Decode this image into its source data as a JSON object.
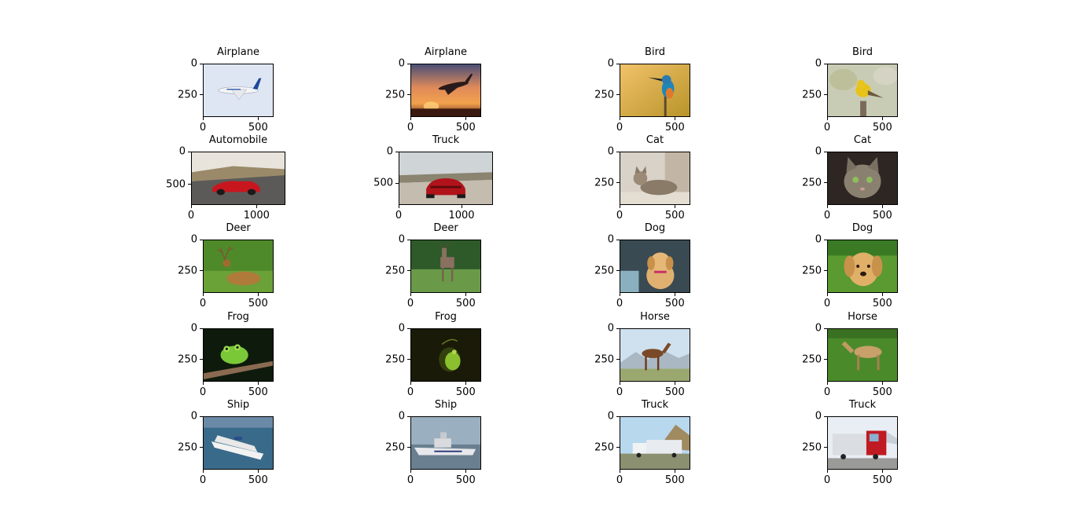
{
  "chart_data": {
    "type": "image-grid",
    "panels": [
      {
        "title": "Airplane",
        "scene": "airplane-sky",
        "xmax": 640,
        "ymax": 427,
        "xticks": [
          {
            "v": 0,
            "label": "0"
          },
          {
            "v": 500,
            "label": "500"
          }
        ],
        "yticks": [
          {
            "v": 0,
            "label": "0"
          },
          {
            "v": 250,
            "label": "250"
          }
        ]
      },
      {
        "title": "Airplane",
        "scene": "airplane-sunset",
        "xmax": 640,
        "ymax": 427,
        "xticks": [
          {
            "v": 0,
            "label": "0"
          },
          {
            "v": 500,
            "label": "500"
          }
        ],
        "yticks": [
          {
            "v": 0,
            "label": "0"
          },
          {
            "v": 250,
            "label": "250"
          }
        ]
      },
      {
        "title": "Bird",
        "scene": "kingfisher",
        "xmax": 640,
        "ymax": 427,
        "xticks": [
          {
            "v": 0,
            "label": "0"
          },
          {
            "v": 500,
            "label": "500"
          }
        ],
        "yticks": [
          {
            "v": 0,
            "label": "0"
          },
          {
            "v": 250,
            "label": "250"
          }
        ]
      },
      {
        "title": "Bird",
        "scene": "yellow-bird",
        "xmax": 640,
        "ymax": 427,
        "xticks": [
          {
            "v": 0,
            "label": "0"
          },
          {
            "v": 500,
            "label": "500"
          }
        ],
        "yticks": [
          {
            "v": 0,
            "label": "0"
          },
          {
            "v": 250,
            "label": "250"
          }
        ]
      },
      {
        "title": "Automobile",
        "scene": "red-car-road",
        "xmax": 1440,
        "ymax": 810,
        "xticks": [
          {
            "v": 0,
            "label": "0"
          },
          {
            "v": 1000,
            "label": "1000"
          }
        ],
        "yticks": [
          {
            "v": 0,
            "label": "0"
          },
          {
            "v": 500,
            "label": "500"
          }
        ]
      },
      {
        "title": "Truck",
        "scene": "red-car-rear",
        "xmax": 1500,
        "ymax": 844,
        "xticks": [
          {
            "v": 0,
            "label": "0"
          },
          {
            "v": 1000,
            "label": "1000"
          }
        ],
        "yticks": [
          {
            "v": 0,
            "label": "0"
          },
          {
            "v": 500,
            "label": "500"
          }
        ]
      },
      {
        "title": "Cat",
        "scene": "cat-lying",
        "xmax": 640,
        "ymax": 427,
        "xticks": [
          {
            "v": 0,
            "label": "0"
          },
          {
            "v": 500,
            "label": "500"
          }
        ],
        "yticks": [
          {
            "v": 0,
            "label": "0"
          },
          {
            "v": 250,
            "label": "250"
          }
        ]
      },
      {
        "title": "Cat",
        "scene": "cat-face",
        "xmax": 640,
        "ymax": 427,
        "xticks": [
          {
            "v": 0,
            "label": "0"
          },
          {
            "v": 500,
            "label": "500"
          }
        ],
        "yticks": [
          {
            "v": 0,
            "label": "0"
          },
          {
            "v": 250,
            "label": "250"
          }
        ]
      },
      {
        "title": "Deer",
        "scene": "deer-lying",
        "xmax": 640,
        "ymax": 427,
        "xticks": [
          {
            "v": 0,
            "label": "0"
          },
          {
            "v": 500,
            "label": "500"
          }
        ],
        "yticks": [
          {
            "v": 0,
            "label": "0"
          },
          {
            "v": 250,
            "label": "250"
          }
        ]
      },
      {
        "title": "Deer",
        "scene": "deer-standing",
        "xmax": 640,
        "ymax": 427,
        "xticks": [
          {
            "v": 0,
            "label": "0"
          },
          {
            "v": 500,
            "label": "500"
          }
        ],
        "yticks": [
          {
            "v": 0,
            "label": "0"
          },
          {
            "v": 250,
            "label": "250"
          }
        ]
      },
      {
        "title": "Dog",
        "scene": "puppy-indoor",
        "xmax": 640,
        "ymax": 427,
        "xticks": [
          {
            "v": 0,
            "label": "0"
          },
          {
            "v": 500,
            "label": "500"
          }
        ],
        "yticks": [
          {
            "v": 0,
            "label": "0"
          },
          {
            "v": 250,
            "label": "250"
          }
        ]
      },
      {
        "title": "Dog",
        "scene": "puppy-grass",
        "xmax": 640,
        "ymax": 427,
        "xticks": [
          {
            "v": 0,
            "label": "0"
          },
          {
            "v": 500,
            "label": "500"
          }
        ],
        "yticks": [
          {
            "v": 0,
            "label": "0"
          },
          {
            "v": 250,
            "label": "250"
          }
        ]
      },
      {
        "title": "Frog",
        "scene": "frog-branch",
        "xmax": 640,
        "ymax": 427,
        "xticks": [
          {
            "v": 0,
            "label": "0"
          },
          {
            "v": 500,
            "label": "500"
          }
        ],
        "yticks": [
          {
            "v": 0,
            "label": "0"
          },
          {
            "v": 250,
            "label": "250"
          }
        ]
      },
      {
        "title": "Frog",
        "scene": "frog-dark",
        "xmax": 640,
        "ymax": 427,
        "xticks": [
          {
            "v": 0,
            "label": "0"
          },
          {
            "v": 500,
            "label": "500"
          }
        ],
        "yticks": [
          {
            "v": 0,
            "label": "0"
          },
          {
            "v": 250,
            "label": "250"
          }
        ]
      },
      {
        "title": "Horse",
        "scene": "horse-mountain",
        "xmax": 640,
        "ymax": 427,
        "xticks": [
          {
            "v": 0,
            "label": "0"
          },
          {
            "v": 500,
            "label": "500"
          }
        ],
        "yticks": [
          {
            "v": 0,
            "label": "0"
          },
          {
            "v": 250,
            "label": "250"
          }
        ]
      },
      {
        "title": "Horse",
        "scene": "horse-field",
        "xmax": 640,
        "ymax": 427,
        "xticks": [
          {
            "v": 0,
            "label": "0"
          },
          {
            "v": 500,
            "label": "500"
          }
        ],
        "yticks": [
          {
            "v": 0,
            "label": "0"
          },
          {
            "v": 250,
            "label": "250"
          }
        ]
      },
      {
        "title": "Ship",
        "scene": "cruise-ship",
        "xmax": 640,
        "ymax": 427,
        "xticks": [
          {
            "v": 0,
            "label": "0"
          },
          {
            "v": 500,
            "label": "500"
          }
        ],
        "yticks": [
          {
            "v": 0,
            "label": "0"
          },
          {
            "v": 250,
            "label": "250"
          }
        ]
      },
      {
        "title": "Ship",
        "scene": "patrol-boat",
        "xmax": 640,
        "ymax": 427,
        "xticks": [
          {
            "v": 0,
            "label": "0"
          },
          {
            "v": 500,
            "label": "500"
          }
        ],
        "yticks": [
          {
            "v": 0,
            "label": "0"
          },
          {
            "v": 250,
            "label": "250"
          }
        ]
      },
      {
        "title": "Truck",
        "scene": "white-truck",
        "xmax": 640,
        "ymax": 427,
        "xticks": [
          {
            "v": 0,
            "label": "0"
          },
          {
            "v": 500,
            "label": "500"
          }
        ],
        "yticks": [
          {
            "v": 0,
            "label": "0"
          },
          {
            "v": 250,
            "label": "250"
          }
        ]
      },
      {
        "title": "Truck",
        "scene": "red-truck",
        "xmax": 640,
        "ymax": 427,
        "xticks": [
          {
            "v": 0,
            "label": "0"
          },
          {
            "v": 500,
            "label": "500"
          }
        ],
        "yticks": [
          {
            "v": 0,
            "label": "0"
          },
          {
            "v": 250,
            "label": "250"
          }
        ]
      }
    ]
  }
}
